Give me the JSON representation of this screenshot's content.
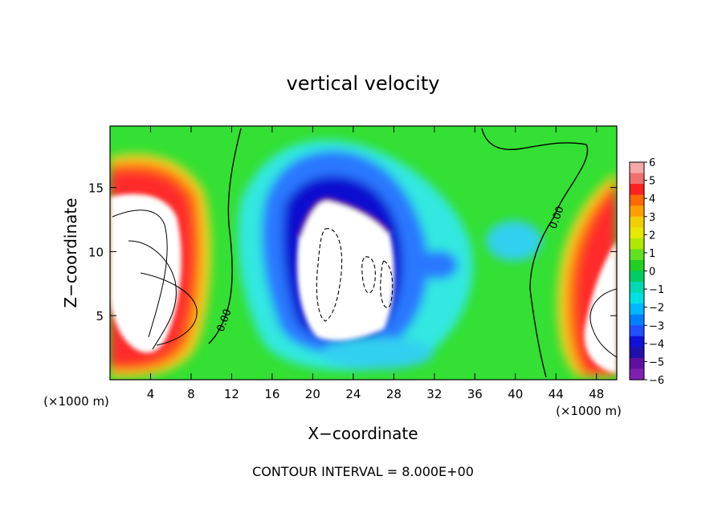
{
  "chart_data": {
    "type": "heatmap",
    "title": "vertical velocity",
    "xlabel": "X−coordinate",
    "ylabel": "Z−coordinate",
    "x_unit_left": "(×1000 m)",
    "x_unit_right": "(×1000 m)",
    "xlim": [
      0,
      50
    ],
    "ylim": [
      0,
      19.8
    ],
    "xticks": [
      "4",
      "8",
      "12",
      "16",
      "20",
      "24",
      "28",
      "32",
      "36",
      "40",
      "44",
      "48"
    ],
    "xtick_values": [
      4,
      8,
      12,
      16,
      20,
      24,
      28,
      32,
      36,
      40,
      44,
      48
    ],
    "yticks": [
      "5",
      "10",
      "15"
    ],
    "ytick_values": [
      5,
      10,
      15
    ],
    "colorbar": {
      "ticks": [
        "6",
        "5",
        "4",
        "3",
        "2",
        "1",
        "0",
        "−1",
        "−2",
        "−3",
        "−4",
        "−5",
        "−6"
      ],
      "range": [
        -6,
        6
      ]
    },
    "contour_labels": [
      "0.00",
      "0.00"
    ],
    "footer": "CONTOUR INTERVAL = 8.000E+00",
    "grid": false,
    "legend_position": "right colorbar"
  }
}
